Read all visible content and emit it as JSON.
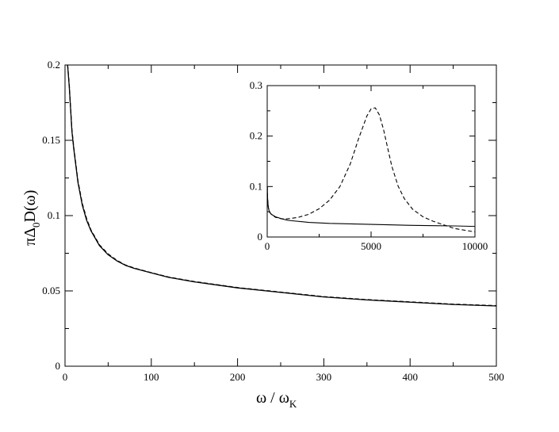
{
  "chart_data": [
    {
      "type": "line",
      "title": "",
      "xlabel": {
        "main": "ω / ω",
        "sub": "K"
      },
      "ylabel": {
        "pre": "πΔ",
        "sub": "0",
        "post": "D(ω)"
      },
      "xlim": [
        0,
        500
      ],
      "ylim": [
        0,
        0.2
      ],
      "xticks": [
        "0",
        "100",
        "200",
        "300",
        "400",
        "500"
      ],
      "xtick_values": [
        0,
        100,
        200,
        300,
        400,
        500
      ],
      "yticks": [
        "0",
        "0.05",
        "0.1",
        "0.15",
        "0.2"
      ],
      "ytick_values": [
        0,
        0.05,
        0.1,
        0.15,
        0.2
      ],
      "grid": false,
      "series": [
        {
          "style": "solid",
          "x": [
            3,
            5,
            8,
            10,
            15,
            20,
            25,
            30,
            40,
            50,
            60,
            70,
            80,
            100,
            120,
            150,
            200,
            250,
            300,
            350,
            400,
            450,
            500
          ],
          "y": [
            0.2,
            0.185,
            0.156,
            0.145,
            0.122,
            0.107,
            0.097,
            0.09,
            0.08,
            0.074,
            0.07,
            0.067,
            0.065,
            0.062,
            0.059,
            0.056,
            0.052,
            0.049,
            0.046,
            0.044,
            0.0425,
            0.041,
            0.04
          ]
        },
        {
          "style": "dashed",
          "x": [
            3,
            5,
            8,
            10,
            15,
            20,
            25,
            30,
            40,
            50,
            60,
            70,
            80,
            100,
            120,
            150,
            200,
            250,
            300,
            350,
            400,
            450,
            500
          ],
          "y": [
            0.2,
            0.186,
            0.157,
            0.146,
            0.123,
            0.108,
            0.098,
            0.0905,
            0.0805,
            0.0745,
            0.0703,
            0.0672,
            0.0652,
            0.0621,
            0.0592,
            0.0562,
            0.0522,
            0.0492,
            0.0462,
            0.0442,
            0.0427,
            0.0412,
            0.0402
          ]
        }
      ]
    },
    {
      "type": "line",
      "title": "",
      "xlim": [
        0,
        10000
      ],
      "ylim": [
        0,
        0.3
      ],
      "xticks": [
        "0",
        "5000",
        "10000"
      ],
      "xtick_values": [
        0,
        5000,
        10000
      ],
      "yticks": [
        "0",
        "0.1",
        "0.2",
        "0.3"
      ],
      "ytick_values": [
        0,
        0.1,
        0.2,
        0.3
      ],
      "grid": false,
      "series": [
        {
          "style": "solid",
          "x": [
            5,
            20,
            50,
            100,
            200,
            400,
            700,
            1000,
            2000,
            3000,
            4000,
            5000,
            6000,
            7000,
            8000,
            9000,
            10000
          ],
          "y": [
            0.1,
            0.075,
            0.06,
            0.05,
            0.045,
            0.04,
            0.036,
            0.033,
            0.029,
            0.027,
            0.026,
            0.025,
            0.024,
            0.023,
            0.0225,
            0.022,
            0.021
          ]
        },
        {
          "style": "dashed",
          "x": [
            5,
            20,
            50,
            100,
            200,
            400,
            700,
            1000,
            1500,
            2000,
            2500,
            3000,
            3500,
            4000,
            4400,
            4800,
            5000,
            5200,
            5400,
            5600,
            5800,
            6000,
            6300,
            6600,
            7000,
            7500,
            8000,
            9000,
            10000
          ],
          "y": [
            0.1,
            0.075,
            0.06,
            0.05,
            0.045,
            0.039,
            0.036,
            0.036,
            0.039,
            0.045,
            0.056,
            0.073,
            0.1,
            0.145,
            0.195,
            0.24,
            0.254,
            0.256,
            0.242,
            0.213,
            0.176,
            0.14,
            0.101,
            0.076,
            0.055,
            0.04,
            0.031,
            0.017,
            0.01
          ]
        }
      ]
    }
  ]
}
